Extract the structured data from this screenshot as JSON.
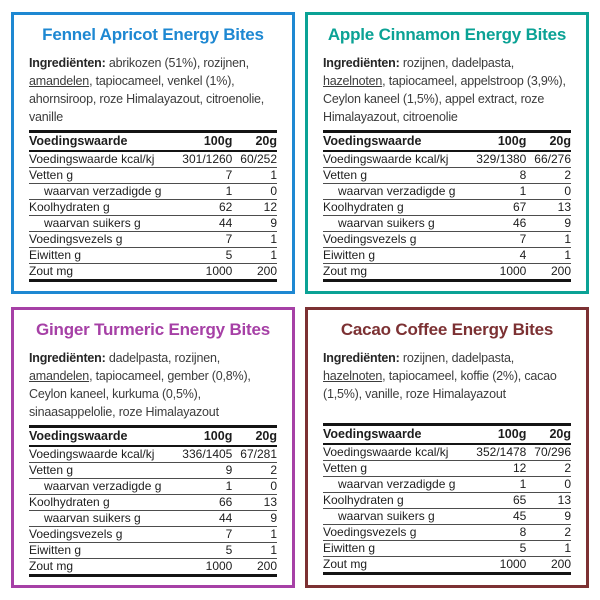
{
  "page": {
    "background": "#ffffff"
  },
  "cards": [
    {
      "id": "fennel-apricot",
      "accent": "#1e88d2",
      "title": "Fennel Apricot Energy Bites",
      "ingredients": {
        "label": "Ingrediënten:",
        "pre": " abrikozen (51%), rozijnen, ",
        "allergen": "amandelen",
        "post": ", tapiocameel, venkel (1%), ahornsiroop, roze Himalayazout, citroenolie, vanille"
      },
      "table": {
        "header": {
          "label": "Voedingswaarde",
          "per100": "100g",
          "per20": "20g"
        },
        "rows": [
          {
            "label": "Voedingswaarde kcal/kj",
            "per100": "301/1260",
            "per20": "60/252"
          },
          {
            "label": "Vetten g",
            "per100": "7",
            "per20": "1"
          },
          {
            "label": "waarvan verzadigde g",
            "per100": "1",
            "per20": "0"
          },
          {
            "label": "Koolhydraten g",
            "per100": "62",
            "per20": "12"
          },
          {
            "label": "waarvan suikers g",
            "per100": "44",
            "per20": "9"
          },
          {
            "label": "Voedingsvezels g",
            "per100": "7",
            "per20": "1"
          },
          {
            "label": "Eiwitten g",
            "per100": "5",
            "per20": "1"
          },
          {
            "label": "Zout mg",
            "per100": "1000",
            "per20": "200"
          }
        ]
      }
    },
    {
      "id": "apple-cinnamon",
      "accent": "#0ba295",
      "title": "Apple Cinnamon Energy Bites",
      "ingredients": {
        "label": "Ingrediënten:",
        "pre": " rozijnen, dadelpasta, ",
        "allergen": "hazelnoten",
        "post": ", tapiocameel, appelstroop (3,9%), Ceylon kaneel (1,5%), appel extract, roze Himalayazout, citroenolie"
      },
      "table": {
        "header": {
          "label": "Voedingswaarde",
          "per100": "100g",
          "per20": "20g"
        },
        "rows": [
          {
            "label": "Voedingswaarde kcal/kj",
            "per100": "329/1380",
            "per20": "66/276"
          },
          {
            "label": "Vetten g",
            "per100": "8",
            "per20": "2"
          },
          {
            "label": "waarvan verzadigde g",
            "per100": "1",
            "per20": "0"
          },
          {
            "label": "Koolhydraten g",
            "per100": "67",
            "per20": "13"
          },
          {
            "label": "waarvan suikers g",
            "per100": "46",
            "per20": "9"
          },
          {
            "label": "Voedingsvezels g",
            "per100": "7",
            "per20": "1"
          },
          {
            "label": "Eiwitten g",
            "per100": "4",
            "per20": "1"
          },
          {
            "label": "Zout mg",
            "per100": "1000",
            "per20": "200"
          }
        ]
      }
    },
    {
      "id": "ginger-turmeric",
      "accent": "#a640a6",
      "title": "Ginger Turmeric Energy Bites",
      "ingredients": {
        "label": "Ingrediënten:",
        "pre": " dadelpasta, rozijnen, ",
        "allergen": "amandelen",
        "post": ", tapiocameel, gember (0,8%), Ceylon kaneel, kurkuma (0,5%), sinaasappelolie, roze Himalayazout"
      },
      "table": {
        "header": {
          "label": "Voedingswaarde",
          "per100": "100g",
          "per20": "20g"
        },
        "rows": [
          {
            "label": "Voedingswaarde kcal/kj",
            "per100": "336/1405",
            "per20": "67/281"
          },
          {
            "label": "Vetten g",
            "per100": "9",
            "per20": "2"
          },
          {
            "label": "waarvan verzadigde g",
            "per100": "1",
            "per20": "0"
          },
          {
            "label": "Koolhydraten g",
            "per100": "66",
            "per20": "13"
          },
          {
            "label": "waarvan suikers g",
            "per100": "44",
            "per20": "9"
          },
          {
            "label": "Voedingsvezels g",
            "per100": "7",
            "per20": "1"
          },
          {
            "label": "Eiwitten g",
            "per100": "5",
            "per20": "1"
          },
          {
            "label": "Zout mg",
            "per100": "1000",
            "per20": "200"
          }
        ]
      }
    },
    {
      "id": "cacao-coffee",
      "accent": "#7c3133",
      "title": "Cacao Coffee Energy Bites",
      "ingredients": {
        "label": "Ingrediënten:",
        "pre": " rozijnen, dadelpasta, ",
        "allergen": "hazelnoten",
        "post": ", tapiocameel, koffie (2%), cacao (1,5%), vanille, roze Himalayazout"
      },
      "table": {
        "header": {
          "label": "Voedingswaarde",
          "per100": "100g",
          "per20": "20g"
        },
        "rows": [
          {
            "label": "Voedingswaarde kcal/kj",
            "per100": "352/1478",
            "per20": "70/296"
          },
          {
            "label": "Vetten g",
            "per100": "12",
            "per20": "2"
          },
          {
            "label": "waarvan verzadigde g",
            "per100": "1",
            "per20": "0"
          },
          {
            "label": "Koolhydraten g",
            "per100": "65",
            "per20": "13"
          },
          {
            "label": "waarvan suikers g",
            "per100": "45",
            "per20": "9"
          },
          {
            "label": "Voedingsvezels g",
            "per100": "8",
            "per20": "2"
          },
          {
            "label": "Eiwitten g",
            "per100": "5",
            "per20": "1"
          },
          {
            "label": "Zout mg",
            "per100": "1000",
            "per20": "200"
          }
        ]
      }
    }
  ]
}
